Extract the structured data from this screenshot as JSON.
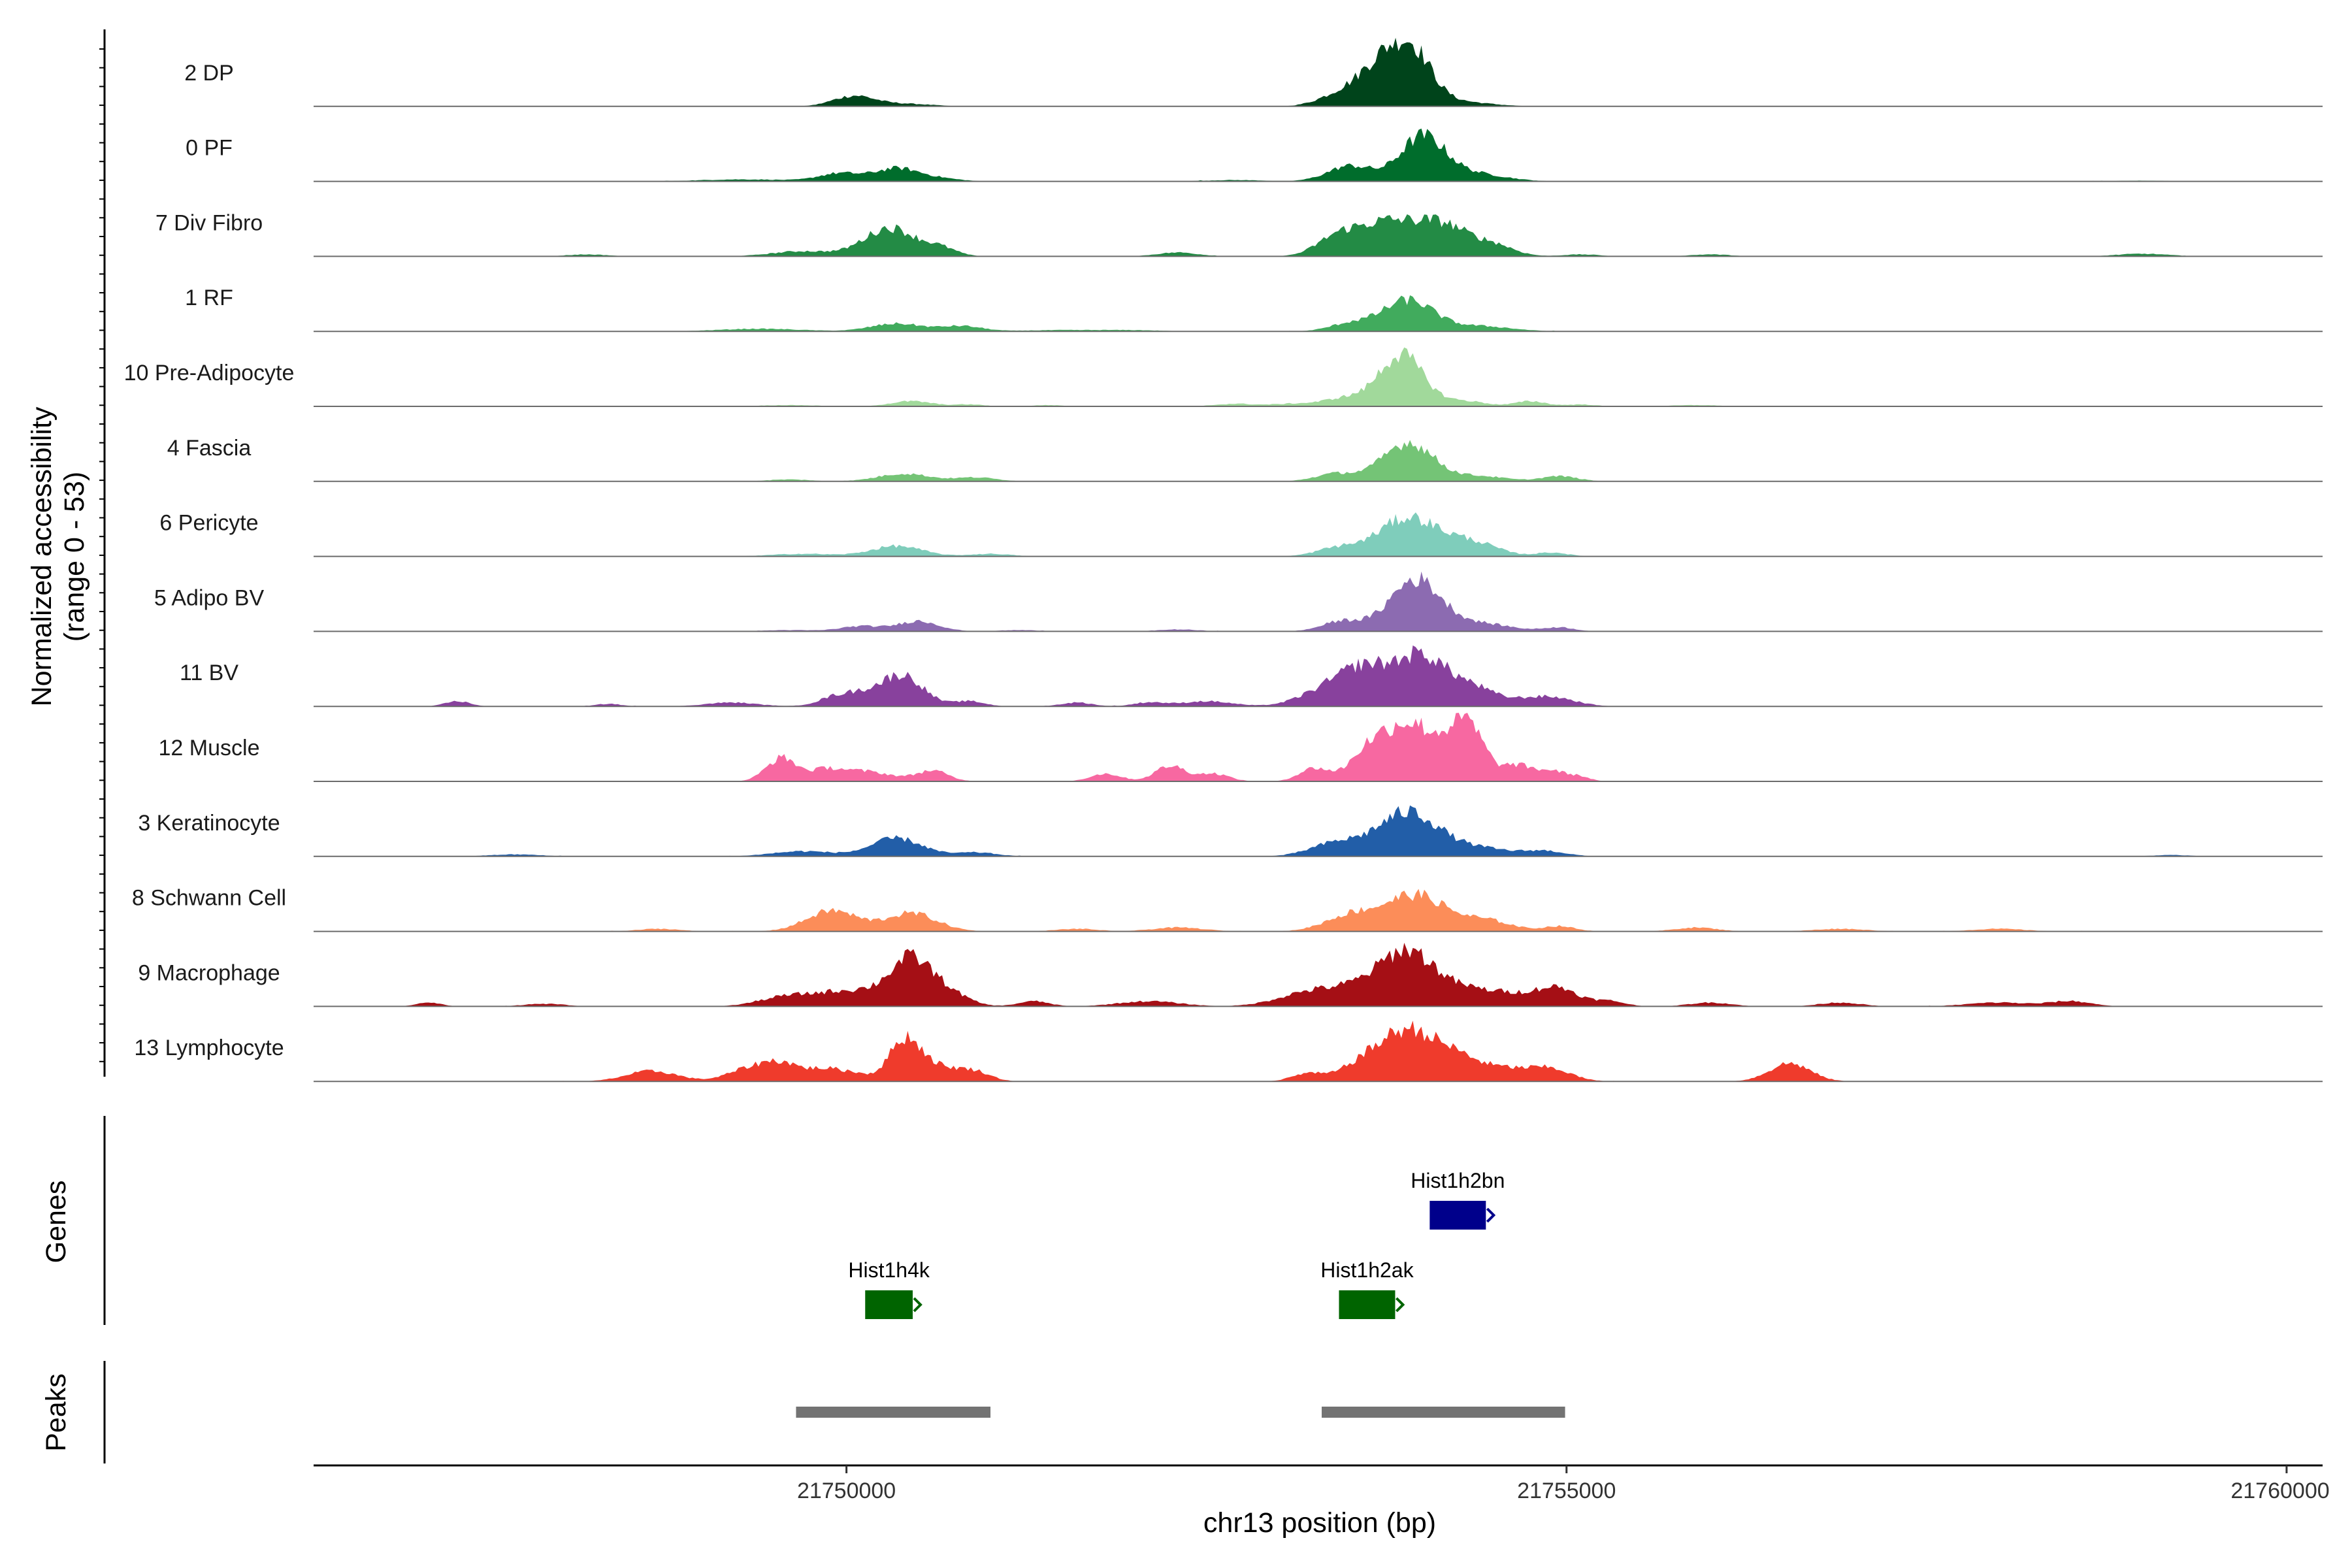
{
  "chart_data": {
    "type": "area",
    "chromosome": "chr13",
    "xlabel": "chr13 position (bp)",
    "ylabel_line1": "Normalized accessibility",
    "ylabel_line2": "(range 0 - 53)",
    "xlim": [
      21746300,
      21760250
    ],
    "x_ticks": [
      21750000,
      21755000,
      21760000
    ],
    "x_tick_labels": [
      "21750000",
      "21755000",
      "21760000"
    ],
    "y_range": [
      0,
      53
    ],
    "grid": false,
    "legend": "none",
    "tracks": [
      {
        "name": "2 DP",
        "color": "#00441b",
        "peaks": [
          [
            21750050,
            200,
            8
          ],
          [
            21750400,
            260,
            2
          ],
          [
            21753400,
            200,
            7
          ],
          [
            21753750,
            250,
            38
          ],
          [
            21753950,
            180,
            25
          ],
          [
            21754200,
            330,
            4
          ]
        ]
      },
      {
        "name": "0 PF",
        "color": "#006d2c",
        "peaks": [
          [
            21749300,
            450,
            1.5
          ],
          [
            21749950,
            200,
            6
          ],
          [
            21750350,
            220,
            10
          ],
          [
            21750650,
            200,
            2
          ],
          [
            21753500,
            220,
            12
          ],
          [
            21754000,
            220,
            34
          ],
          [
            21754350,
            300,
            6
          ],
          [
            21752700,
            300,
            1
          ],
          [
            21759000,
            250,
            0.6
          ]
        ]
      },
      {
        "name": "7 Div Fibro",
        "color": "#238b45",
        "peaks": [
          [
            21748200,
            200,
            1.5
          ],
          [
            21749700,
            300,
            4
          ],
          [
            21750300,
            250,
            22
          ],
          [
            21750650,
            160,
            6
          ],
          [
            21752300,
            200,
            3
          ],
          [
            21753400,
            200,
            12
          ],
          [
            21753750,
            300,
            26
          ],
          [
            21754150,
            250,
            22
          ],
          [
            21754500,
            200,
            8
          ],
          [
            21755100,
            180,
            1.5
          ],
          [
            21756000,
            200,
            1.5
          ],
          [
            21759000,
            250,
            2
          ]
        ]
      },
      {
        "name": "1 RF",
        "color": "#41ab5d",
        "peaks": [
          [
            21749400,
            400,
            2
          ],
          [
            21750350,
            250,
            6
          ],
          [
            21750800,
            200,
            4
          ],
          [
            21751500,
            400,
            1
          ],
          [
            21753500,
            200,
            6
          ],
          [
            21753900,
            250,
            24
          ],
          [
            21754400,
            300,
            4
          ],
          [
            21752000,
            300,
            0.8
          ]
        ]
      },
      {
        "name": "10 Pre-Adipocyte",
        "color": "#a1d99b",
        "peaks": [
          [
            21749600,
            300,
            1
          ],
          [
            21750450,
            200,
            4
          ],
          [
            21750850,
            150,
            1.5
          ],
          [
            21751400,
            150,
            1
          ],
          [
            21752700,
            200,
            2
          ],
          [
            21753100,
            200,
            2
          ],
          [
            21753450,
            200,
            6
          ],
          [
            21753850,
            220,
            40
          ],
          [
            21754300,
            200,
            4
          ],
          [
            21754750,
            150,
            4
          ],
          [
            21755100,
            150,
            1.5
          ],
          [
            21755900,
            250,
            1
          ]
        ]
      },
      {
        "name": "4 Fascia",
        "color": "#74c476",
        "peaks": [
          [
            21749600,
            200,
            1.5
          ],
          [
            21750400,
            250,
            6
          ],
          [
            21750900,
            200,
            3
          ],
          [
            21753400,
            200,
            6
          ],
          [
            21753900,
            250,
            30
          ],
          [
            21754400,
            250,
            4
          ],
          [
            21754950,
            180,
            4
          ]
        ]
      },
      {
        "name": "6 Pericyte",
        "color": "#7fcdbb",
        "peaks": [
          [
            21749700,
            300,
            2
          ],
          [
            21750350,
            250,
            8
          ],
          [
            21751000,
            200,
            2
          ],
          [
            21753400,
            200,
            6
          ],
          [
            21753900,
            300,
            30
          ],
          [
            21754350,
            250,
            10
          ],
          [
            21754900,
            150,
            3
          ]
        ]
      },
      {
        "name": "5 Adipo BV",
        "color": "#8c6bb1",
        "peaks": [
          [
            21749600,
            250,
            1
          ],
          [
            21750100,
            200,
            4
          ],
          [
            21750500,
            200,
            8
          ],
          [
            21751200,
            200,
            1
          ],
          [
            21752300,
            200,
            1.5
          ],
          [
            21753450,
            200,
            8
          ],
          [
            21753950,
            250,
            40
          ],
          [
            21754400,
            300,
            6
          ],
          [
            21754950,
            150,
            3
          ]
        ]
      },
      {
        "name": "11 BV",
        "color": "#88419d",
        "peaks": [
          [
            21747300,
            120,
            4
          ],
          [
            21748350,
            120,
            2
          ],
          [
            21749200,
            250,
            3
          ],
          [
            21749900,
            150,
            3
          ],
          [
            21750100,
            250,
            10
          ],
          [
            21750400,
            200,
            22
          ],
          [
            21750850,
            150,
            4
          ],
          [
            21751600,
            150,
            3
          ],
          [
            21752100,
            150,
            3
          ],
          [
            21752500,
            250,
            4
          ],
          [
            21753300,
            250,
            10
          ],
          [
            21753600,
            250,
            28
          ],
          [
            21754000,
            250,
            38
          ],
          [
            21754350,
            200,
            12
          ],
          [
            21754750,
            300,
            6
          ],
          [
            21754950,
            200,
            3
          ]
        ]
      },
      {
        "name": "12 Muscle",
        "color": "#f768a1",
        "peaks": [
          [
            21749550,
            150,
            18
          ],
          [
            21749850,
            150,
            6
          ],
          [
            21750100,
            300,
            8
          ],
          [
            21750600,
            150,
            8
          ],
          [
            21751800,
            150,
            6
          ],
          [
            21752250,
            150,
            12
          ],
          [
            21752550,
            150,
            6
          ],
          [
            21753250,
            150,
            10
          ],
          [
            21753600,
            150,
            12
          ],
          [
            21753900,
            300,
            46
          ],
          [
            21754250,
            150,
            20
          ],
          [
            21754350,
            150,
            26
          ],
          [
            21754650,
            150,
            12
          ],
          [
            21754900,
            150,
            8
          ],
          [
            21755100,
            100,
            3
          ]
        ]
      },
      {
        "name": "3 Keratinocyte",
        "color": "#225ea8",
        "peaks": [
          [
            21747700,
            250,
            1.5
          ],
          [
            21749700,
            300,
            4
          ],
          [
            21750350,
            250,
            14
          ],
          [
            21750900,
            200,
            3
          ],
          [
            21753400,
            250,
            10
          ],
          [
            21753900,
            300,
            34
          ],
          [
            21754400,
            300,
            6
          ],
          [
            21754850,
            200,
            4
          ],
          [
            21759200,
            200,
            1
          ]
        ]
      },
      {
        "name": "8 Schwann Cell",
        "color": "#fc8d59",
        "peaks": [
          [
            21748700,
            200,
            2
          ],
          [
            21749900,
            250,
            16
          ],
          [
            21750450,
            250,
            14
          ],
          [
            21751600,
            200,
            2
          ],
          [
            21752300,
            250,
            3
          ],
          [
            21753500,
            250,
            12
          ],
          [
            21753950,
            300,
            28
          ],
          [
            21754450,
            250,
            8
          ],
          [
            21754950,
            150,
            4
          ],
          [
            21755900,
            200,
            3
          ],
          [
            21756900,
            250,
            2
          ],
          [
            21758000,
            250,
            2
          ]
        ]
      },
      {
        "name": "9 Macrophage",
        "color": "#a50f15",
        "peaks": [
          [
            21747100,
            120,
            3
          ],
          [
            21747900,
            200,
            2
          ],
          [
            21749550,
            250,
            6
          ],
          [
            21749900,
            300,
            8
          ],
          [
            21750200,
            300,
            8
          ],
          [
            21750450,
            200,
            32
          ],
          [
            21750700,
            200,
            10
          ],
          [
            21751300,
            150,
            4
          ],
          [
            21752100,
            300,
            4
          ],
          [
            21753200,
            300,
            10
          ],
          [
            21753600,
            300,
            14
          ],
          [
            21753900,
            250,
            36
          ],
          [
            21754250,
            300,
            12
          ],
          [
            21754650,
            300,
            8
          ],
          [
            21754950,
            200,
            12
          ],
          [
            21755300,
            150,
            4
          ],
          [
            21756000,
            200,
            3
          ],
          [
            21756900,
            200,
            3
          ],
          [
            21758000,
            300,
            3
          ],
          [
            21758500,
            200,
            4
          ]
        ]
      },
      {
        "name": "13 Lymphocyte",
        "color": "#ef3b2c",
        "peaks": [
          [
            21748650,
            250,
            8
          ],
          [
            21749300,
            200,
            8
          ],
          [
            21749550,
            200,
            14
          ],
          [
            21749850,
            150,
            8
          ],
          [
            21750050,
            150,
            6
          ],
          [
            21750400,
            150,
            28
          ],
          [
            21750600,
            250,
            12
          ],
          [
            21750900,
            150,
            6
          ],
          [
            21753200,
            150,
            6
          ],
          [
            21753550,
            200,
            8
          ],
          [
            21753900,
            300,
            40
          ],
          [
            21754250,
            200,
            10
          ],
          [
            21754550,
            300,
            10
          ],
          [
            21754900,
            200,
            8
          ],
          [
            21756550,
            200,
            14
          ]
        ]
      }
    ],
    "genes": [
      {
        "name": "Hist1h2bn",
        "start": 21754050,
        "end": 21754440,
        "color": "#00008b"
      },
      {
        "name": "Hist1h4k",
        "start": 21750130,
        "end": 21750460,
        "color": "#006400"
      },
      {
        "name": "Hist1h2ak",
        "start": 21753420,
        "end": 21753810,
        "color": "#006400"
      }
    ],
    "gene_track_label": "Genes",
    "peak_track_label": "Peaks",
    "peaks": [
      {
        "start": 21749650,
        "end": 21751000,
        "color": "#737373"
      },
      {
        "start": 21753300,
        "end": 21754990,
        "color": "#737373"
      }
    ]
  }
}
